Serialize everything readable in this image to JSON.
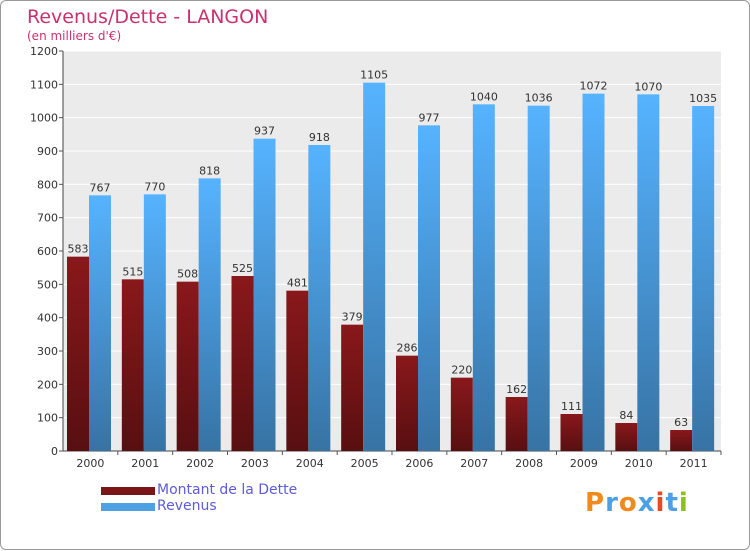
{
  "chart_data": {
    "type": "bar",
    "title": "Revenus/Dette - LANGON",
    "subtitle": "(en milliers d'€)",
    "categories": [
      "2000",
      "2001",
      "2002",
      "2003",
      "2004",
      "2005",
      "2006",
      "2007",
      "2008",
      "2009",
      "2010",
      "2011"
    ],
    "series": [
      {
        "name": "Montant de la Dette",
        "color": "#7a1518",
        "values": [
          583,
          515,
          508,
          525,
          481,
          379,
          286,
          220,
          162,
          111,
          84,
          63
        ]
      },
      {
        "name": "Revenus",
        "color": "#4da0e4",
        "values": [
          767,
          770,
          818,
          937,
          918,
          1105,
          977,
          1040,
          1036,
          1072,
          1070,
          1035
        ]
      }
    ],
    "ylim": [
      0,
      1200
    ],
    "yticks": [
      0,
      100,
      200,
      300,
      400,
      500,
      600,
      700,
      800,
      900,
      1000,
      1100,
      1200
    ],
    "grid": true,
    "legend": "bottom-left"
  },
  "brand": {
    "logo_text": "Proxiti"
  }
}
